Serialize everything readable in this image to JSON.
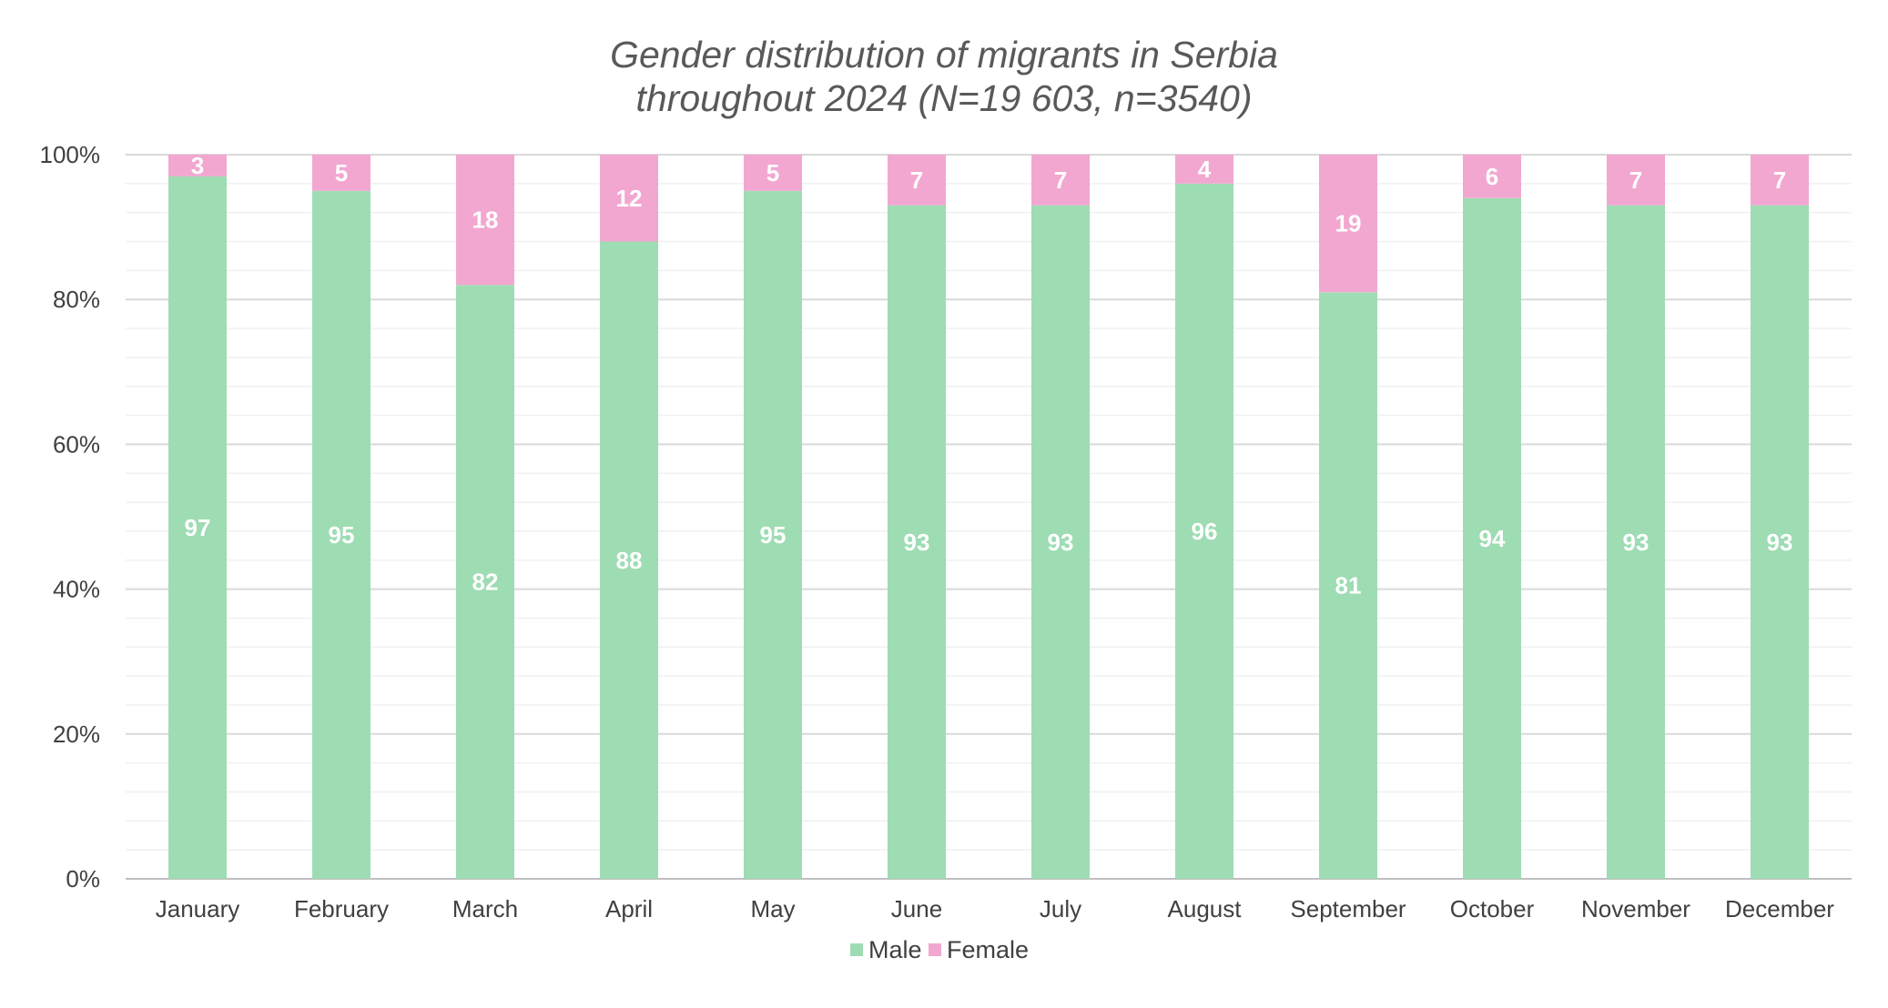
{
  "chart_data": {
    "type": "bar",
    "stacked": true,
    "title_line1": "Gender distribution of migrants in Serbia",
    "title_line2": "throughout 2024 (N=19 603, n=3540)",
    "categories": [
      "January",
      "February",
      "March",
      "April",
      "May",
      "June",
      "July",
      "August",
      "September",
      "October",
      "November",
      "December"
    ],
    "series": [
      {
        "name": "Male",
        "color": "#9edcb3",
        "values": [
          97,
          95,
          82,
          88,
          95,
          93,
          93,
          96,
          81,
          94,
          93,
          93
        ]
      },
      {
        "name": "Female",
        "color": "#f2a7d0",
        "values": [
          3,
          5,
          18,
          12,
          5,
          7,
          7,
          4,
          19,
          6,
          7,
          7
        ]
      }
    ],
    "ylim": [
      0,
      100
    ],
    "yticks": [
      "0%",
      "20%",
      "40%",
      "60%",
      "80%",
      "100%"
    ],
    "ytick_values": [
      0,
      20,
      40,
      60,
      80,
      100
    ],
    "grid": true,
    "legend_position": "bottom"
  }
}
